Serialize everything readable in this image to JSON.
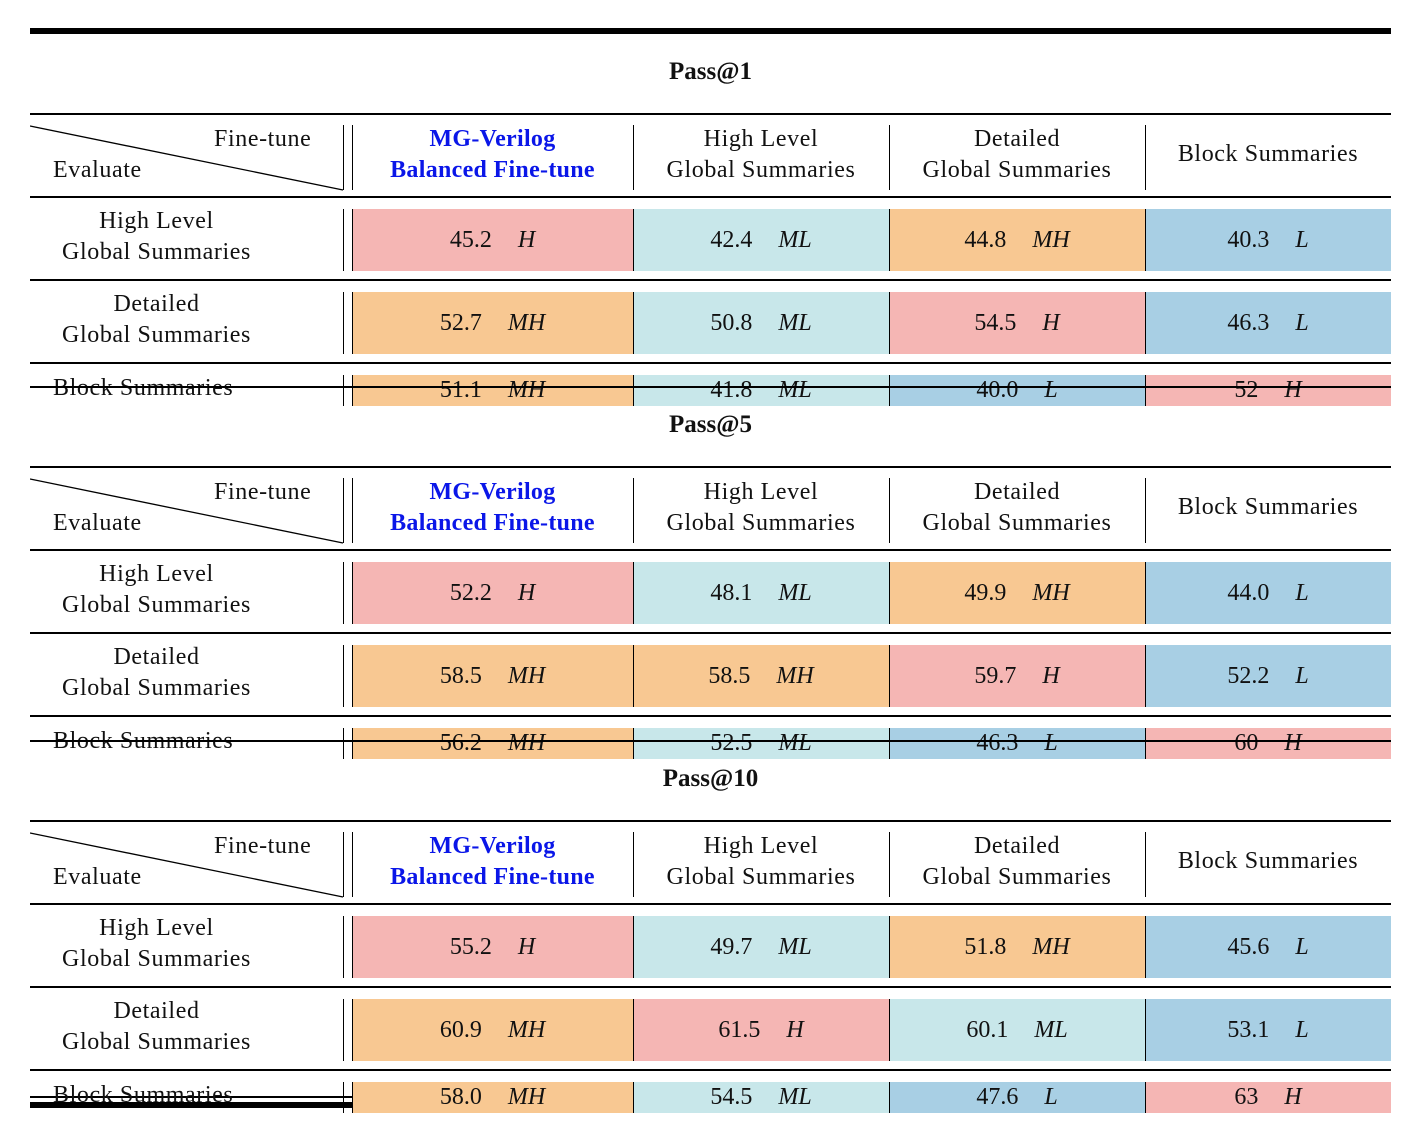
{
  "columns": [
    {
      "line1": "MG-Verilog",
      "line2": "Balanced Fine-tune",
      "highlight": true
    },
    {
      "line1": "High Level",
      "line2": "Global Summaries",
      "highlight": false
    },
    {
      "line1": "Detailed",
      "line2": "Global Summaries",
      "highlight": false
    },
    {
      "line1": "Block Summaries",
      "line2": "",
      "highlight": false
    }
  ],
  "corner": {
    "top": "Fine-tune",
    "bottom": "Evaluate"
  },
  "row_labels": [
    {
      "line1": "High Level",
      "line2": "Global Summaries"
    },
    {
      "line1": "Detailed",
      "line2": "Global Summaries"
    },
    {
      "line1": "Block Summaries",
      "line2": ""
    }
  ],
  "level_colors": {
    "H": "#f5b6b4",
    "MH": "#f8c892",
    "ML": "#c8e7ea",
    "L": "#a8cfe4"
  },
  "sections": [
    {
      "title": "Pass@1",
      "rows": [
        [
          {
            "value": "45.2",
            "level": "H"
          },
          {
            "value": "42.4",
            "level": "ML"
          },
          {
            "value": "44.8",
            "level": "MH"
          },
          {
            "value": "40.3",
            "level": "L"
          }
        ],
        [
          {
            "value": "52.7",
            "level": "MH"
          },
          {
            "value": "50.8",
            "level": "ML"
          },
          {
            "value": "54.5",
            "level": "H"
          },
          {
            "value": "46.3",
            "level": "L"
          }
        ],
        [
          {
            "value": "51.1",
            "level": "MH"
          },
          {
            "value": "41.8",
            "level": "ML"
          },
          {
            "value": "40.0",
            "level": "L"
          },
          {
            "value": "52",
            "level": "H"
          }
        ]
      ]
    },
    {
      "title": "Pass@5",
      "rows": [
        [
          {
            "value": "52.2",
            "level": "H"
          },
          {
            "value": "48.1",
            "level": "ML"
          },
          {
            "value": "49.9",
            "level": "MH"
          },
          {
            "value": "44.0",
            "level": "L"
          }
        ],
        [
          {
            "value": "58.5",
            "level": "MH"
          },
          {
            "value": "58.5",
            "level": "MH"
          },
          {
            "value": "59.7",
            "level": "H"
          },
          {
            "value": "52.2",
            "level": "L"
          }
        ],
        [
          {
            "value": "56.2",
            "level": "MH"
          },
          {
            "value": "52.5",
            "level": "ML"
          },
          {
            "value": "46.3",
            "level": "L"
          },
          {
            "value": "60",
            "level": "H"
          }
        ]
      ]
    },
    {
      "title": "Pass@10",
      "rows": [
        [
          {
            "value": "55.2",
            "level": "H"
          },
          {
            "value": "49.7",
            "level": "ML"
          },
          {
            "value": "51.8",
            "level": "MH"
          },
          {
            "value": "45.6",
            "level": "L"
          }
        ],
        [
          {
            "value": "60.9",
            "level": "MH"
          },
          {
            "value": "61.5",
            "level": "H"
          },
          {
            "value": "60.1",
            "level": "ML"
          },
          {
            "value": "53.1",
            "level": "L"
          }
        ],
        [
          {
            "value": "58.0",
            "level": "MH"
          },
          {
            "value": "54.5",
            "level": "ML"
          },
          {
            "value": "47.6",
            "level": "L"
          },
          {
            "value": "63",
            "level": "H"
          }
        ]
      ]
    }
  ]
}
